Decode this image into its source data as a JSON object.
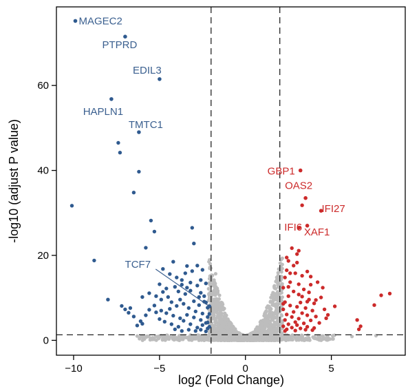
{
  "chart_data": {
    "type": "scatter",
    "title": "",
    "xlabel": "log2 (Fold Change)",
    "ylabel": "-log10 (adjust P value)",
    "xlim": [
      -11,
      9.3
    ],
    "ylim": [
      -3.5,
      78.5
    ],
    "xticks": [
      -10,
      -5,
      0,
      5
    ],
    "yticks": [
      0,
      20,
      40,
      60
    ],
    "xtick_labels": [
      "−10",
      "−5",
      "0",
      "5"
    ],
    "ytick_labels": [
      "0",
      "20",
      "40",
      "60"
    ],
    "thresholds": {
      "log2fc": [
        -2,
        2
      ],
      "neg_log10_p": 1.3
    },
    "grid": false,
    "legend": "none",
    "colors": {
      "down": "#2f5a8f",
      "up": "#cc2a2a",
      "ns": "#bdbdbd",
      "down_text": "#3a5f8f",
      "up_text": "#cc2a2a"
    },
    "labeled_genes": [
      {
        "name": "MAGEC2",
        "x": -9.9,
        "y": 75.2,
        "group": "down"
      },
      {
        "name": "PTPRD",
        "x": -7.0,
        "y": 71.5,
        "group": "down"
      },
      {
        "name": "EDIL3",
        "x": -5.0,
        "y": 61.5,
        "group": "down"
      },
      {
        "name": "HAPLN1",
        "x": -7.8,
        "y": 56.8,
        "group": "down"
      },
      {
        "name": "TMTC1",
        "x": -6.2,
        "y": 49.0,
        "group": "down"
      },
      {
        "name": "TCF7",
        "x": -2.1,
        "y": 8.0,
        "group": "down"
      },
      {
        "name": "GBP1",
        "x": 3.2,
        "y": 40.0,
        "group": "up"
      },
      {
        "name": "OAS2",
        "x": 3.5,
        "y": 33.5,
        "group": "up"
      },
      {
        "name": "IFI27",
        "x": 4.4,
        "y": 30.5,
        "group": "up"
      },
      {
        "name": "IFI6",
        "x": 3.1,
        "y": 26.5,
        "group": "up"
      },
      {
        "name": "XAF1",
        "x": 3.6,
        "y": 27.0,
        "group": "up"
      }
    ],
    "series": [
      {
        "group": "down",
        "points": [
          [
            -10.1,
            31.7
          ],
          [
            -7.4,
            46.5
          ],
          [
            -7.3,
            44.2
          ],
          [
            -6.2,
            39.7
          ],
          [
            -6.5,
            34.8
          ],
          [
            -5.5,
            28.2
          ],
          [
            -5.3,
            25.6
          ],
          [
            -5.8,
            21.8
          ],
          [
            -8.8,
            18.8
          ],
          [
            -4.2,
            18.5
          ],
          [
            -3.1,
            26.5
          ],
          [
            -3.0,
            22.8
          ],
          [
            -3.4,
            17.5
          ],
          [
            -4.8,
            16.8
          ],
          [
            -4.4,
            15.6
          ],
          [
            -4.0,
            14.8
          ],
          [
            -3.7,
            14.2
          ],
          [
            -3.2,
            13.6
          ],
          [
            -2.8,
            12.9
          ],
          [
            -5.0,
            13.2
          ],
          [
            -4.6,
            12.2
          ],
          [
            -3.9,
            11.5
          ],
          [
            -3.5,
            10.9
          ],
          [
            -2.6,
            11.2
          ],
          [
            -5.6,
            11.1
          ],
          [
            -6.0,
            10.2
          ],
          [
            -2.4,
            10.4
          ],
          [
            -4.9,
            9.6
          ],
          [
            -4.3,
            9.0
          ],
          [
            -3.6,
            8.6
          ],
          [
            -3.0,
            9.2
          ],
          [
            -2.7,
            8.3
          ],
          [
            -2.2,
            7.7
          ],
          [
            -5.3,
            8.2
          ],
          [
            -6.7,
            7.6
          ],
          [
            -8.0,
            9.6
          ],
          [
            -7.2,
            8.1
          ],
          [
            -7.0,
            7.3
          ],
          [
            -6.8,
            6.5
          ],
          [
            -6.5,
            5.6
          ],
          [
            -6.1,
            4.5
          ],
          [
            -6.3,
            3.5
          ],
          [
            -6.0,
            3.9
          ],
          [
            -4.9,
            7.0
          ],
          [
            -4.6,
            6.4
          ],
          [
            -4.2,
            5.8
          ],
          [
            -3.8,
            5.2
          ],
          [
            -3.4,
            6.0
          ],
          [
            -3.0,
            5.4
          ],
          [
            -2.6,
            4.8
          ],
          [
            -2.3,
            4.1
          ],
          [
            -5.0,
            5.0
          ],
          [
            -4.7,
            4.4
          ],
          [
            -4.3,
            3.8
          ],
          [
            -3.9,
            3.2
          ],
          [
            -3.6,
            4.6
          ],
          [
            -3.2,
            3.8
          ],
          [
            -2.8,
            3.0
          ],
          [
            -2.5,
            3.6
          ],
          [
            -2.2,
            2.8
          ],
          [
            -4.1,
            2.6
          ],
          [
            -3.7,
            2.2
          ],
          [
            -3.3,
            2.5
          ],
          [
            -2.9,
            2.2
          ],
          [
            -2.6,
            2.5
          ],
          [
            -2.3,
            2.1
          ],
          [
            -5.2,
            6.6
          ],
          [
            -5.6,
            7.2
          ],
          [
            -5.8,
            5.9
          ],
          [
            -4.5,
            10.2
          ],
          [
            -4.0,
            8.1
          ],
          [
            -3.3,
            7.6
          ],
          [
            -2.9,
            6.8
          ],
          [
            -2.5,
            6.3
          ],
          [
            -2.2,
            5.5
          ],
          [
            -2.1,
            3.2
          ],
          [
            -3.5,
            15.8
          ],
          [
            -3.1,
            16.3
          ],
          [
            -2.6,
            14.2
          ],
          [
            -2.3,
            13.4
          ],
          [
            -2.5,
            16.6
          ],
          [
            -2.8,
            17.6
          ],
          [
            -4.1,
            12.6
          ],
          [
            -3.7,
            13.1
          ],
          [
            -5.2,
            10.4
          ],
          [
            -4.8,
            11.4
          ],
          [
            -3.2,
            11.7
          ],
          [
            -2.4,
            9.1
          ],
          [
            -2.1,
            6.2
          ],
          [
            -2.2,
            4.2
          ],
          [
            -4.4,
            7.4
          ],
          [
            -3.8,
            9.6
          ],
          [
            -3.4,
            12.4
          ],
          [
            -2.7,
            10.2
          ],
          [
            -2.3,
            8.9
          ]
        ]
      },
      {
        "group": "up",
        "points": [
          [
            3.3,
            31.8
          ],
          [
            2.7,
            21.7
          ],
          [
            3.1,
            21.1
          ],
          [
            2.5,
            18.7
          ],
          [
            3.0,
            18.3
          ],
          [
            2.4,
            16.5
          ],
          [
            3.6,
            16.2
          ],
          [
            2.9,
            15.8
          ],
          [
            3.3,
            15.2
          ],
          [
            2.6,
            13.7
          ],
          [
            3.8,
            13.1
          ],
          [
            2.2,
            12.4
          ],
          [
            3.4,
            12.0
          ],
          [
            2.8,
            11.5
          ],
          [
            3.1,
            10.8
          ],
          [
            4.4,
            10.1
          ],
          [
            2.5,
            10.4
          ],
          [
            3.7,
            9.6
          ],
          [
            2.3,
            9.0
          ],
          [
            3.2,
            8.9
          ],
          [
            4.0,
            8.7
          ],
          [
            2.6,
            8.2
          ],
          [
            3.0,
            7.9
          ],
          [
            3.5,
            7.6
          ],
          [
            2.2,
            7.3
          ],
          [
            3.9,
            7.0
          ],
          [
            4.6,
            7.3
          ],
          [
            2.8,
            6.7
          ],
          [
            3.3,
            6.4
          ],
          [
            2.4,
            6.1
          ],
          [
            3.6,
            5.9
          ],
          [
            4.1,
            5.6
          ],
          [
            2.7,
            5.5
          ],
          [
            3.1,
            5.1
          ],
          [
            2.3,
            4.8
          ],
          [
            3.8,
            4.7
          ],
          [
            2.9,
            4.3
          ],
          [
            3.4,
            4.0
          ],
          [
            2.5,
            3.8
          ],
          [
            4.3,
            4.1
          ],
          [
            3.0,
            3.6
          ],
          [
            2.2,
            3.3
          ],
          [
            3.6,
            3.2
          ],
          [
            2.7,
            3.0
          ],
          [
            3.2,
            2.8
          ],
          [
            4.0,
            2.9
          ],
          [
            2.4,
            2.6
          ],
          [
            3.5,
            2.5
          ],
          [
            2.9,
            2.3
          ],
          [
            3.9,
            2.4
          ],
          [
            2.3,
            2.2
          ],
          [
            4.8,
            6.0
          ],
          [
            5.2,
            8.0
          ],
          [
            6.5,
            4.8
          ],
          [
            6.7,
            3.3
          ],
          [
            6.6,
            2.6
          ],
          [
            7.5,
            8.3
          ],
          [
            7.9,
            10.6
          ],
          [
            8.4,
            11.0
          ],
          [
            4.7,
            5.2
          ],
          [
            3.8,
            15.0
          ],
          [
            4.2,
            13.7
          ],
          [
            2.8,
            17.6
          ],
          [
            3.1,
            13.2
          ],
          [
            2.5,
            12.6
          ],
          [
            2.2,
            8.6
          ],
          [
            2.3,
            14.8
          ],
          [
            3.7,
            11.3
          ],
          [
            4.1,
            9.5
          ],
          [
            3.3,
            10.3
          ],
          [
            2.6,
            15.8
          ],
          [
            3.0,
            20.3
          ],
          [
            2.4,
            19.5
          ],
          [
            4.5,
            12.4
          ],
          [
            3.6,
            9.1
          ]
        ]
      }
    ]
  }
}
